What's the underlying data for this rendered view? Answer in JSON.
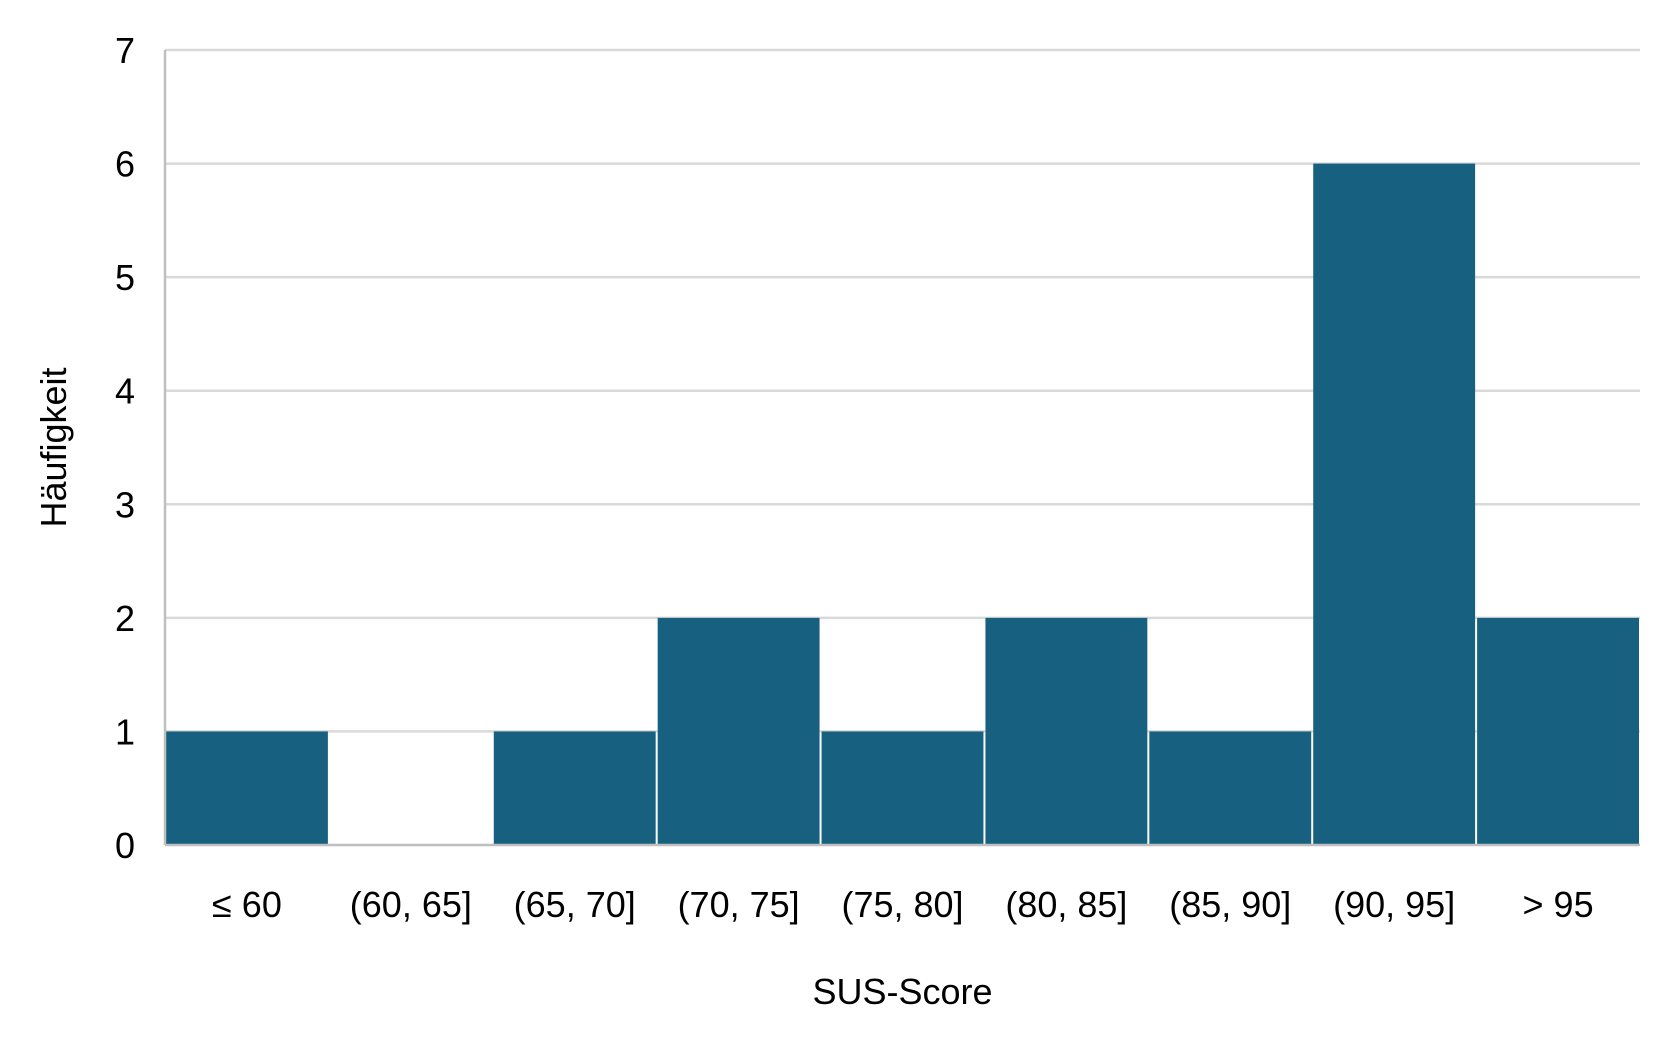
{
  "chart_data": {
    "type": "bar",
    "categories": [
      "≤ 60",
      "(60, 65]",
      "(65, 70]",
      "(70, 75]",
      "(75, 80]",
      "(80, 85]",
      "(85, 90]",
      "(90, 95]",
      "> 95"
    ],
    "values": [
      1,
      0,
      1,
      2,
      1,
      2,
      1,
      6,
      2
    ],
    "xlabel": "SUS-Score",
    "ylabel": "Häufigkeit",
    "ylim": [
      0,
      7
    ],
    "yticks": [
      "0",
      "1",
      "2",
      "3",
      "4",
      "5",
      "6",
      "7"
    ],
    "grid": true,
    "bar_color": "#17607f",
    "grid_color": "#d9d9d9"
  }
}
